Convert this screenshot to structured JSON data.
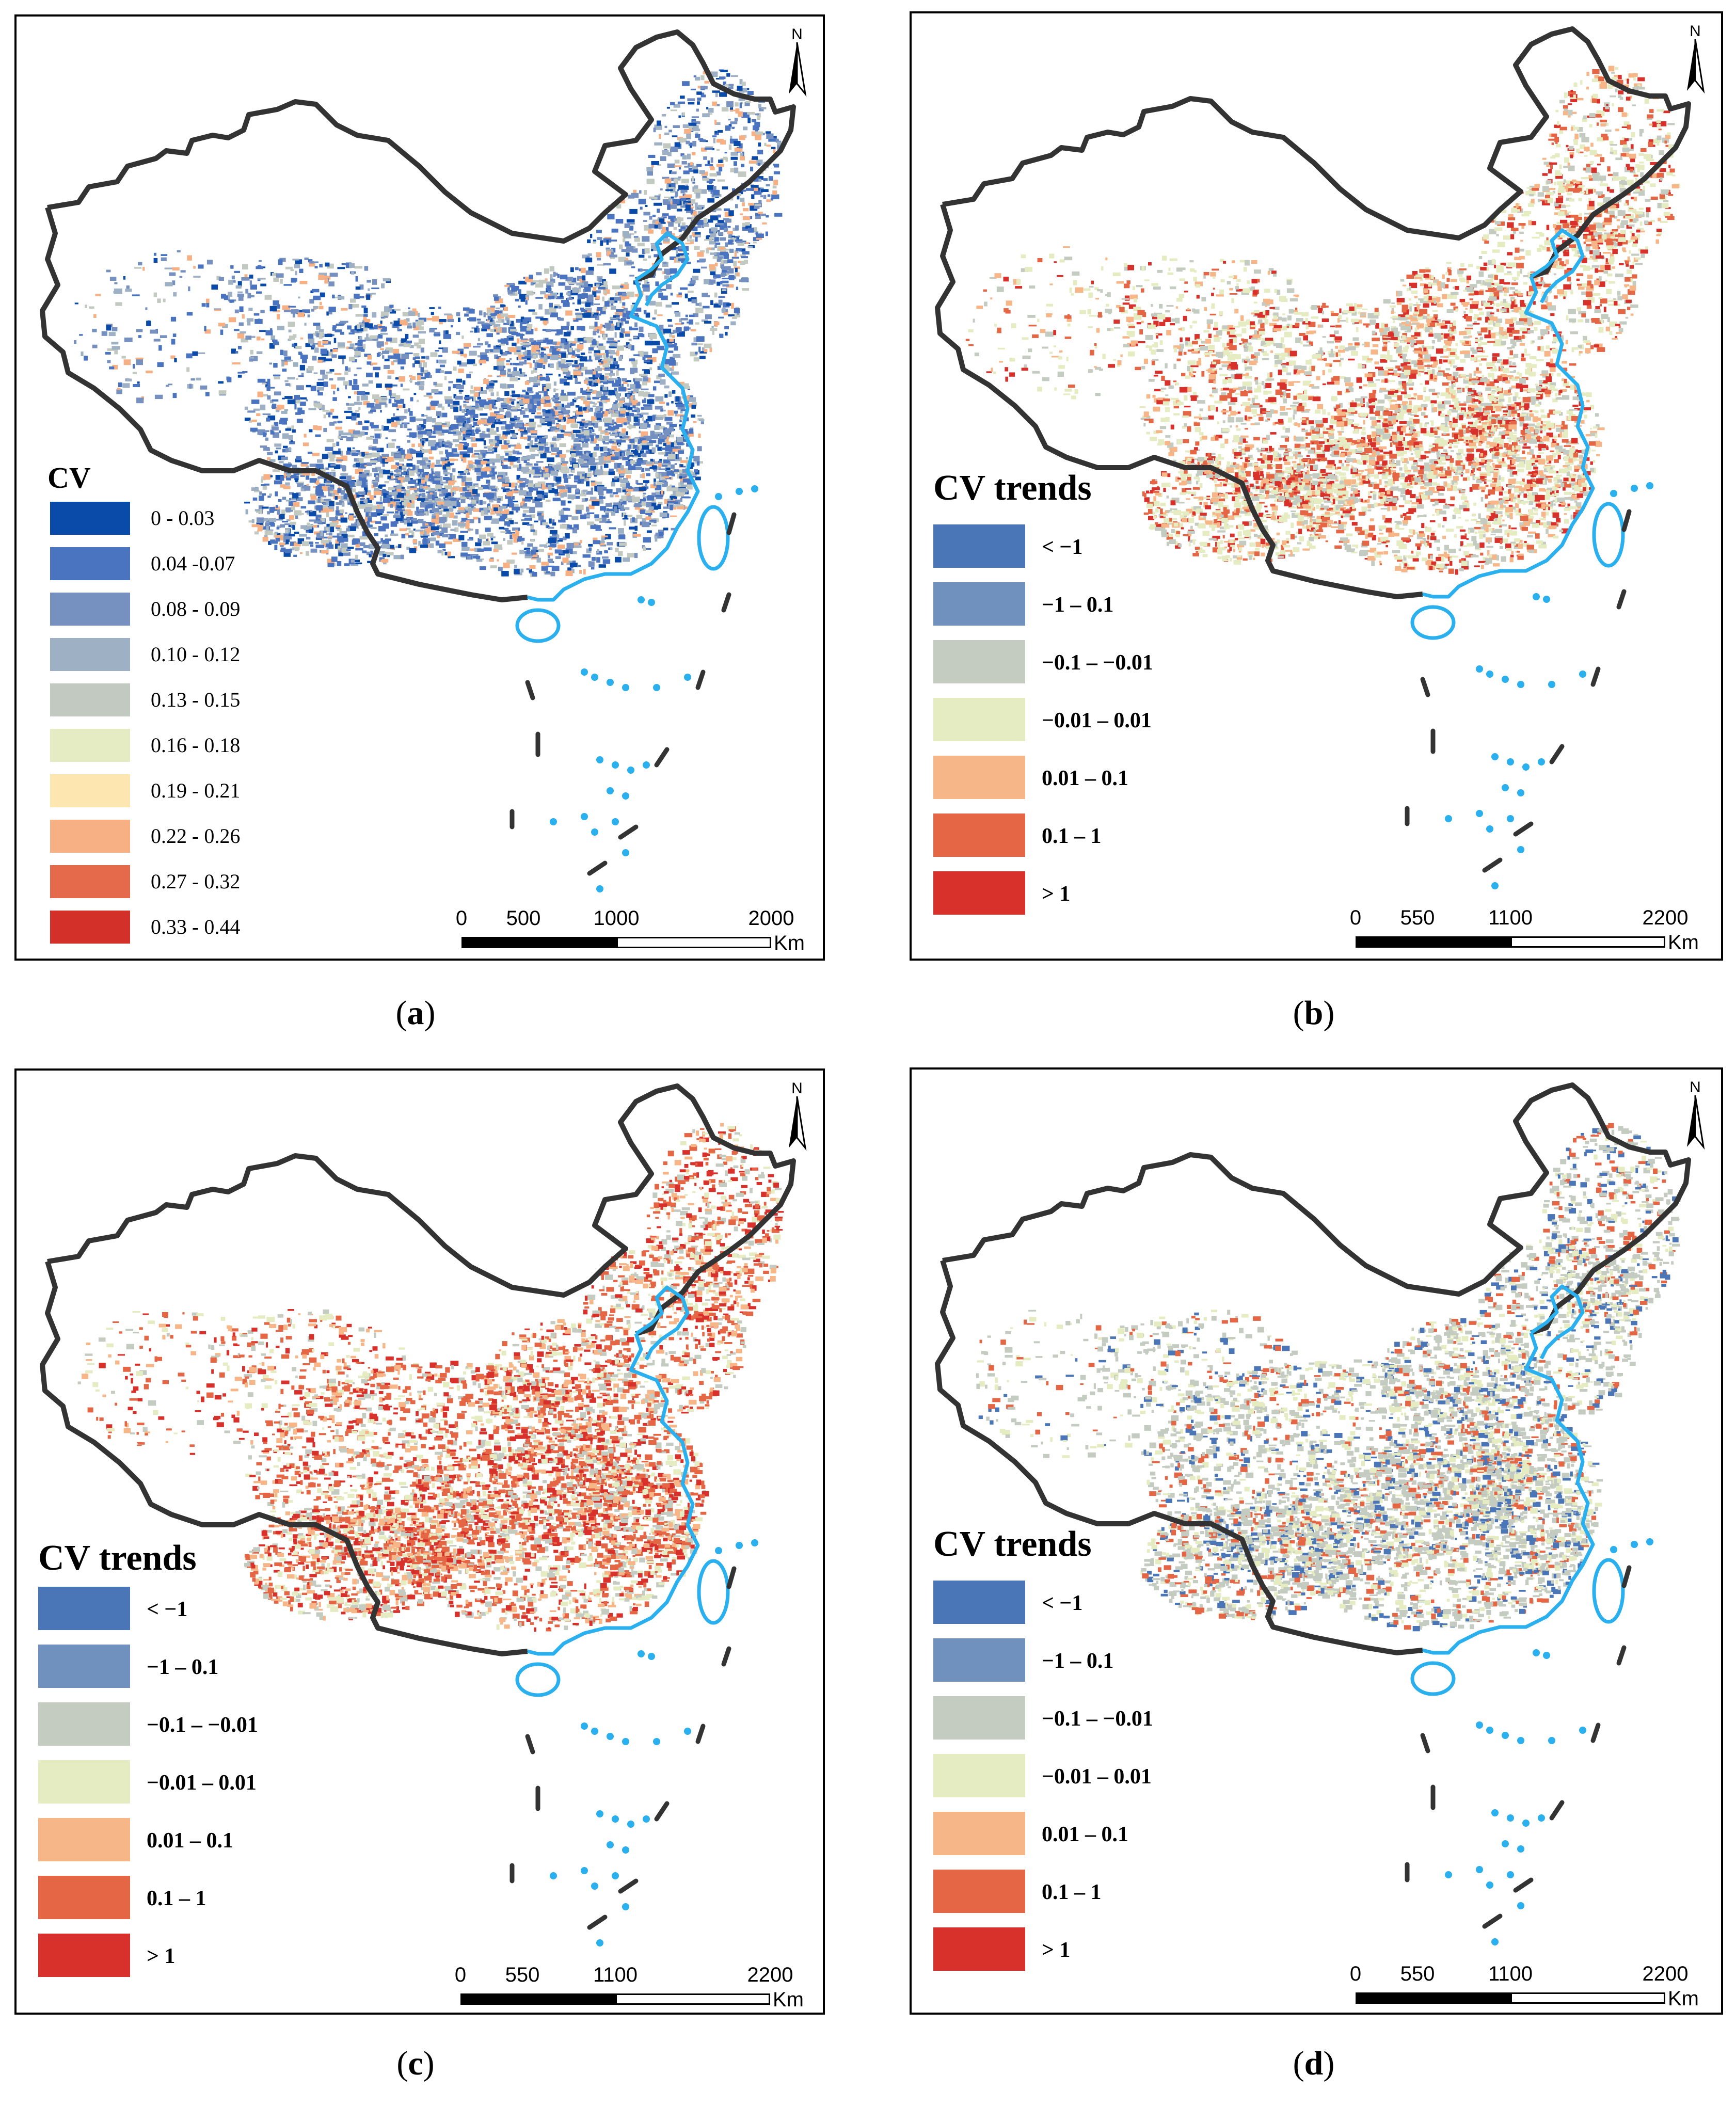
{
  "panels": [
    {
      "id": "a",
      "caption_letter": "a",
      "legend_title": "CV",
      "legend_items": [
        {
          "label": "0 - 0.03",
          "color": "#0a4aa8"
        },
        {
          "label": "0.04 -0.07",
          "color": "#4a73c0"
        },
        {
          "label": "0.08 - 0.09",
          "color": "#7690c0"
        },
        {
          "label": "0.10 - 0.12",
          "color": "#9eb0c4"
        },
        {
          "label": "0.13 - 0.15",
          "color": "#c2c9c0"
        },
        {
          "label": "0.16 - 0.18",
          "color": "#e5ecc4"
        },
        {
          "label": "0.19 - 0.21",
          "color": "#fde6b0"
        },
        {
          "label": "0.22 - 0.26",
          "color": "#f6b084"
        },
        {
          "label": "0.27 - 0.32",
          "color": "#e56a4c"
        },
        {
          "label": "0.33 - 0.44",
          "color": "#d4302a"
        }
      ],
      "scale_ticks": [
        "0",
        "500",
        "1000",
        "2000"
      ],
      "scale_unit": "Km",
      "north_label": "N",
      "dominant_colors": [
        "#4a73c0",
        "#7690c0",
        "#9eb0c4",
        "#c2c9c0",
        "#0a4aa8",
        "#f6b084"
      ]
    },
    {
      "id": "b",
      "caption_letter": "b",
      "legend_title": "CV trends",
      "legend_items": [
        {
          "label": "< −1",
          "color": "#4a76b8"
        },
        {
          "label": "−1 – 0.1",
          "color": "#7090be"
        },
        {
          "label": "−0.1 – −0.01",
          "color": "#c4cbc0"
        },
        {
          "label": "−0.01 – 0.01",
          "color": "#e6ecc2"
        },
        {
          "label": "0.01 – 0.1",
          "color": "#f7b688"
        },
        {
          "label": "0.1 – 1",
          "color": "#e56645"
        },
        {
          "label": "> 1",
          "color": "#d8302a"
        }
      ],
      "scale_ticks": [
        "0",
        "550",
        "1100",
        "2200"
      ],
      "scale_unit": "Km",
      "north_label": "N",
      "dominant_colors": [
        "#e6ecc2",
        "#c4cbc0",
        "#f7b688",
        "#e56645",
        "#d8302a"
      ]
    },
    {
      "id": "c",
      "caption_letter": "c",
      "legend_title": "CV trends",
      "legend_items": [
        {
          "label": "< −1",
          "color": "#4a76b8"
        },
        {
          "label": "−1 – 0.1",
          "color": "#7090be"
        },
        {
          "label": "−0.1 – −0.01",
          "color": "#c4cbc0"
        },
        {
          "label": "−0.01 – 0.01",
          "color": "#e6ecc2"
        },
        {
          "label": "0.01 – 0.1",
          "color": "#f7b688"
        },
        {
          "label": "0.1 – 1",
          "color": "#e56645"
        },
        {
          "label": "> 1",
          "color": "#d8302a"
        }
      ],
      "scale_ticks": [
        "0",
        "550",
        "1100",
        "2200"
      ],
      "scale_unit": "Km",
      "north_label": "N",
      "dominant_colors": [
        "#e56645",
        "#d8302a",
        "#f7b688",
        "#c4cbc0",
        "#e6ecc2"
      ]
    },
    {
      "id": "d",
      "caption_letter": "d",
      "legend_title": "CV trends",
      "legend_items": [
        {
          "label": "< −1",
          "color": "#4a76b8"
        },
        {
          "label": "−1 – 0.1",
          "color": "#7090be"
        },
        {
          "label": "−0.1 – −0.01",
          "color": "#c4cbc0"
        },
        {
          "label": "−0.01 – 0.01",
          "color": "#e6ecc2"
        },
        {
          "label": "0.01 – 0.1",
          "color": "#f7b688"
        },
        {
          "label": "0.1 – 1",
          "color": "#e56645"
        },
        {
          "label": "> 1",
          "color": "#d8302a"
        }
      ],
      "scale_ticks": [
        "0",
        "550",
        "1100",
        "2200"
      ],
      "scale_unit": "Km",
      "north_label": "N",
      "dominant_colors": [
        "#c4cbc0",
        "#e6ecc2",
        "#c4cbc0",
        "#e56645",
        "#4a76b8"
      ]
    }
  ],
  "colors": {
    "border": "#333333",
    "coast": "#2ab0ee"
  }
}
